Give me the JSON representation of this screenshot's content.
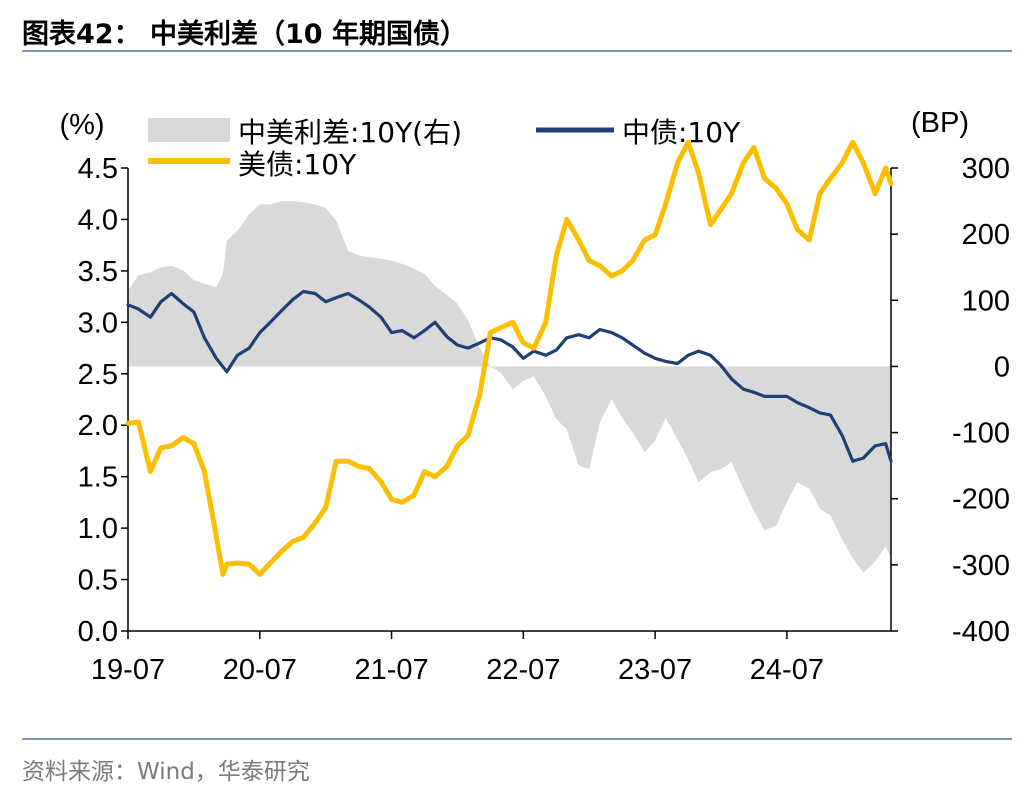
{
  "figure": {
    "title": "图表42：  中美利差（10 年期国债）",
    "source": "资料来源：Wind，华泰研究"
  },
  "colors": {
    "spread": "#d9d9d9",
    "cn": "#1f3f75",
    "us": "#fbbf00",
    "rule": "#7f96c2"
  },
  "chart_data": {
    "type": "line",
    "title": "中美利差（10 年期国债）",
    "ylabel_left": "(%)",
    "ylabel_right": "(BP)",
    "ylim_left": [
      0,
      4.5
    ],
    "ylim_right": [
      -400,
      300
    ],
    "yticks_left": [
      "0.0",
      "0.5",
      "1.0",
      "1.5",
      "2.0",
      "2.5",
      "3.0",
      "3.5",
      "4.0",
      "4.5"
    ],
    "yticks_right": [
      "-400",
      "-300",
      "-200",
      "-100",
      "0",
      "100",
      "200",
      "300"
    ],
    "x_start": 2019.5,
    "x_end": 2025.29,
    "xticks": [
      "19-07",
      "20-07",
      "21-07",
      "22-07",
      "23-07",
      "24-07"
    ],
    "legend_location": "top",
    "series": [
      {
        "name": "中美利差:10Y(右)",
        "type": "area",
        "axis": "right",
        "x": [
          2019.5,
          2019.58,
          2019.67,
          2019.75,
          2019.83,
          2019.92,
          2020.0,
          2020.08,
          2020.17,
          2020.22,
          2020.25,
          2020.33,
          2020.42,
          2020.5,
          2020.58,
          2020.67,
          2020.75,
          2020.83,
          2020.92,
          2021.0,
          2021.08,
          2021.17,
          2021.25,
          2021.33,
          2021.42,
          2021.5,
          2021.58,
          2021.67,
          2021.75,
          2021.83,
          2021.92,
          2022.0,
          2022.08,
          2022.17,
          2022.25,
          2022.33,
          2022.42,
          2022.5,
          2022.58,
          2022.67,
          2022.75,
          2022.83,
          2022.92,
          2023.0,
          2023.08,
          2023.17,
          2023.25,
          2023.33,
          2023.42,
          2023.5,
          2023.58,
          2023.67,
          2023.75,
          2023.83,
          2023.92,
          2024.0,
          2024.08,
          2024.17,
          2024.25,
          2024.33,
          2024.42,
          2024.5,
          2024.58,
          2024.67,
          2024.75,
          2024.83,
          2024.92,
          2025.0,
          2025.08,
          2025.17,
          2025.25,
          2025.29
        ],
        "values": [
          115,
          138,
          142,
          150,
          152,
          145,
          130,
          125,
          120,
          140,
          190,
          205,
          230,
          245,
          245,
          250,
          250,
          248,
          245,
          240,
          220,
          175,
          168,
          165,
          163,
          160,
          155,
          148,
          140,
          122,
          108,
          95,
          70,
          28,
          0,
          -10,
          -35,
          -22,
          -15,
          -45,
          -80,
          -95,
          -150,
          -155,
          -85,
          -50,
          -78,
          -100,
          -130,
          -112,
          -78,
          -110,
          -140,
          -175,
          -160,
          -155,
          -145,
          -185,
          -218,
          -248,
          -240,
          -205,
          -175,
          -185,
          -215,
          -225,
          -262,
          -290,
          -312,
          -295,
          -272,
          -290
        ]
      },
      {
        "name": "中债:10Y",
        "type": "line",
        "axis": "left",
        "x": [
          2019.5,
          2019.58,
          2019.67,
          2019.75,
          2019.83,
          2019.92,
          2020.0,
          2020.08,
          2020.17,
          2020.25,
          2020.33,
          2020.42,
          2020.5,
          2020.58,
          2020.67,
          2020.75,
          2020.83,
          2020.92,
          2021.0,
          2021.08,
          2021.17,
          2021.25,
          2021.33,
          2021.42,
          2021.5,
          2021.58,
          2021.67,
          2021.75,
          2021.83,
          2021.92,
          2022.0,
          2022.08,
          2022.17,
          2022.25,
          2022.33,
          2022.42,
          2022.5,
          2022.58,
          2022.67,
          2022.75,
          2022.83,
          2022.92,
          2023.0,
          2023.08,
          2023.17,
          2023.25,
          2023.33,
          2023.42,
          2023.5,
          2023.58,
          2023.67,
          2023.75,
          2023.83,
          2023.92,
          2024.0,
          2024.08,
          2024.17,
          2024.25,
          2024.33,
          2024.42,
          2024.5,
          2024.58,
          2024.67,
          2024.75,
          2024.83,
          2024.92,
          2025.0,
          2025.08,
          2025.17,
          2025.25,
          2025.29
        ],
        "values": [
          3.17,
          3.13,
          3.05,
          3.2,
          3.28,
          3.18,
          3.1,
          2.85,
          2.65,
          2.52,
          2.68,
          2.75,
          2.9,
          3.0,
          3.12,
          3.22,
          3.3,
          3.28,
          3.2,
          3.24,
          3.28,
          3.22,
          3.15,
          3.05,
          2.9,
          2.92,
          2.85,
          2.92,
          3.0,
          2.86,
          2.78,
          2.75,
          2.8,
          2.85,
          2.83,
          2.76,
          2.65,
          2.72,
          2.68,
          2.73,
          2.85,
          2.88,
          2.85,
          2.93,
          2.9,
          2.85,
          2.78,
          2.7,
          2.65,
          2.62,
          2.6,
          2.68,
          2.72,
          2.68,
          2.58,
          2.45,
          2.35,
          2.32,
          2.28,
          2.28,
          2.28,
          2.22,
          2.17,
          2.12,
          2.1,
          1.9,
          1.65,
          1.68,
          1.8,
          1.82,
          1.65
        ]
      },
      {
        "name": "美债:10Y",
        "type": "line",
        "axis": "left",
        "x": [
          2019.5,
          2019.58,
          2019.67,
          2019.75,
          2019.83,
          2019.92,
          2020.0,
          2020.08,
          2020.17,
          2020.22,
          2020.25,
          2020.33,
          2020.42,
          2020.5,
          2020.58,
          2020.67,
          2020.75,
          2020.83,
          2020.92,
          2021.0,
          2021.08,
          2021.17,
          2021.25,
          2021.33,
          2021.42,
          2021.5,
          2021.58,
          2021.67,
          2021.75,
          2021.83,
          2021.92,
          2022.0,
          2022.08,
          2022.17,
          2022.25,
          2022.33,
          2022.42,
          2022.5,
          2022.58,
          2022.67,
          2022.75,
          2022.83,
          2022.92,
          2023.0,
          2023.08,
          2023.17,
          2023.25,
          2023.33,
          2023.42,
          2023.5,
          2023.58,
          2023.67,
          2023.75,
          2023.83,
          2023.92,
          2024.0,
          2024.08,
          2024.17,
          2024.25,
          2024.33,
          2024.42,
          2024.5,
          2024.58,
          2024.67,
          2024.75,
          2024.83,
          2024.92,
          2025.0,
          2025.08,
          2025.17,
          2025.25,
          2025.29
        ],
        "values": [
          2.02,
          2.03,
          1.55,
          1.78,
          1.8,
          1.88,
          1.82,
          1.55,
          0.92,
          0.55,
          0.65,
          0.66,
          0.65,
          0.55,
          0.66,
          0.78,
          0.87,
          0.91,
          1.05,
          1.2,
          1.65,
          1.65,
          1.6,
          1.58,
          1.45,
          1.28,
          1.25,
          1.32,
          1.55,
          1.5,
          1.6,
          1.8,
          1.9,
          2.3,
          2.9,
          2.95,
          3.0,
          2.8,
          2.75,
          3.0,
          3.65,
          4.0,
          3.8,
          3.6,
          3.55,
          3.45,
          3.5,
          3.6,
          3.8,
          3.85,
          4.15,
          4.55,
          4.75,
          4.45,
          3.95,
          4.1,
          4.25,
          4.55,
          4.7,
          4.4,
          4.3,
          4.15,
          3.9,
          3.8,
          4.25,
          4.4,
          4.55,
          4.75,
          4.55,
          4.25,
          4.5,
          4.35
        ]
      }
    ]
  }
}
